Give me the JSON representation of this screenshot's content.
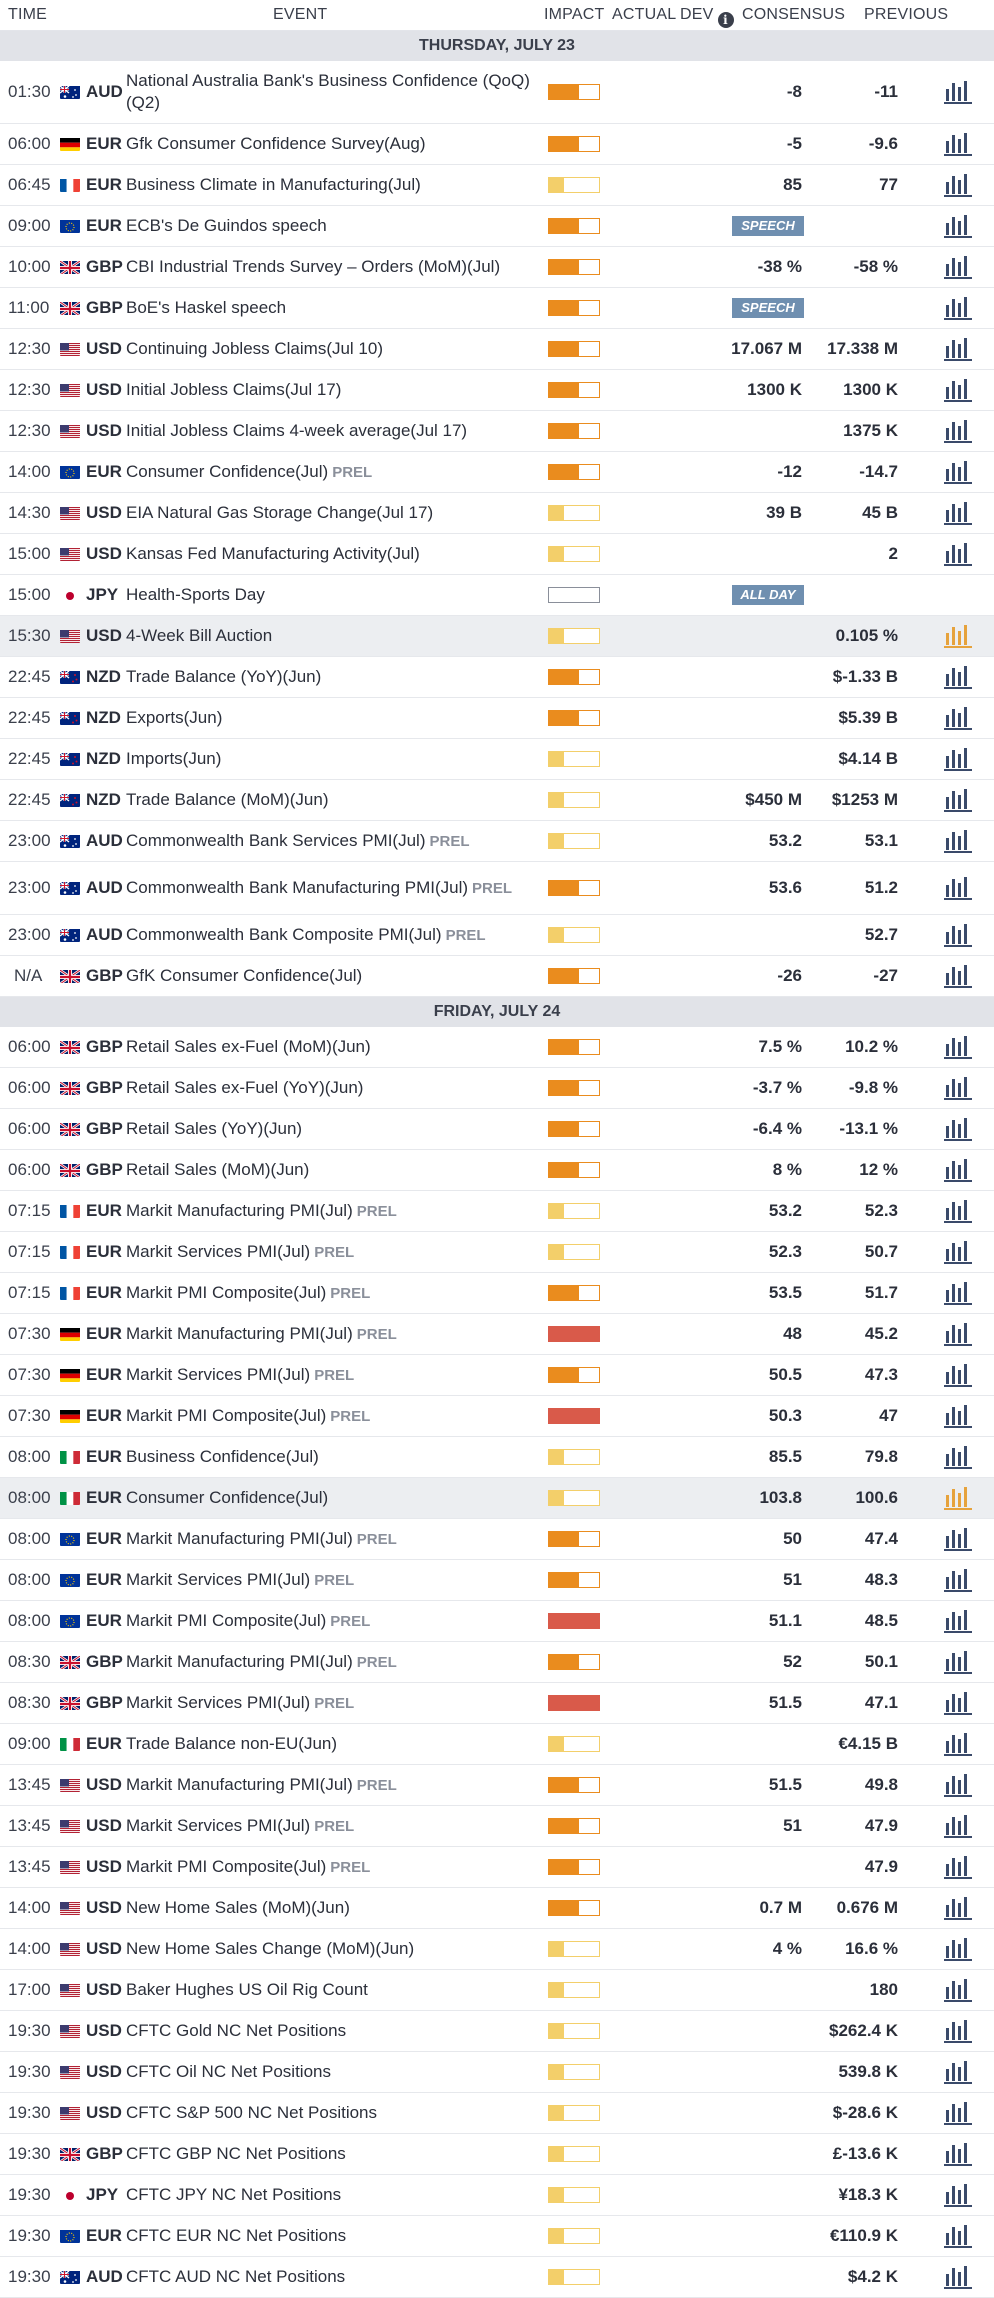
{
  "header": {
    "time": "TIME",
    "event": "EVENT",
    "impact": "IMPACT",
    "actual": "ACTUAL",
    "dev": "DEV",
    "consensus": "CONSENSUS",
    "previous": "PREVIOUS"
  },
  "colors": {
    "impact_high": "#d95a4a",
    "impact_medium": "#ea8c1e",
    "impact_low": "#f3cf6a",
    "chart_icon": "#3a4a6a",
    "chart_icon_active": "#e6a23c",
    "tag_bg": "#6f8fb0"
  },
  "icons": {
    "chart": "bar-chart-icon",
    "info": "info-icon"
  },
  "days": [
    {
      "label": "THURSDAY, JULY 23",
      "rows": [
        {
          "time": "01:30",
          "flag": "AU",
          "cur": "AUD",
          "event": "National Australia Bank's Business Confidence (QoQ)(Q2)",
          "prel": "",
          "impact": 2,
          "consensus": "-8",
          "previous": "-11",
          "tag": "",
          "hl": false,
          "size": "tall"
        },
        {
          "time": "06:00",
          "flag": "DE",
          "cur": "EUR",
          "event": "Gfk Consumer Confidence Survey(Aug)",
          "prel": "",
          "impact": 2,
          "consensus": "-5",
          "previous": "-9.6",
          "tag": "",
          "hl": false
        },
        {
          "time": "06:45",
          "flag": "FR",
          "cur": "EUR",
          "event": "Business Climate in Manufacturing(Jul)",
          "prel": "",
          "impact": 1,
          "consensus": "85",
          "previous": "77",
          "tag": "",
          "hl": false
        },
        {
          "time": "09:00",
          "flag": "EU",
          "cur": "EUR",
          "event": "ECB's De Guindos speech",
          "prel": "",
          "impact": 2,
          "consensus": "",
          "previous": "",
          "tag": "SPEECH",
          "hl": false
        },
        {
          "time": "10:00",
          "flag": "GB",
          "cur": "GBP",
          "event": "CBI Industrial Trends Survey – Orders (MoM)(Jul)",
          "prel": "",
          "impact": 2,
          "consensus": "-38 %",
          "previous": "-58 %",
          "tag": "",
          "hl": false
        },
        {
          "time": "11:00",
          "flag": "GB",
          "cur": "GBP",
          "event": "BoE's Haskel speech",
          "prel": "",
          "impact": 2,
          "consensus": "",
          "previous": "",
          "tag": "SPEECH",
          "hl": false
        },
        {
          "time": "12:30",
          "flag": "US",
          "cur": "USD",
          "event": "Continuing Jobless Claims(Jul 10)",
          "prel": "",
          "impact": 2,
          "consensus": "17.067 M",
          "previous": "17.338 M",
          "tag": "",
          "hl": false
        },
        {
          "time": "12:30",
          "flag": "US",
          "cur": "USD",
          "event": "Initial Jobless Claims(Jul 17)",
          "prel": "",
          "impact": 2,
          "consensus": "1300 K",
          "previous": "1300 K",
          "tag": "",
          "hl": false
        },
        {
          "time": "12:30",
          "flag": "US",
          "cur": "USD",
          "event": "Initial Jobless Claims 4-week average(Jul 17)",
          "prel": "",
          "impact": 2,
          "consensus": "",
          "previous": "1375 K",
          "tag": "",
          "hl": false
        },
        {
          "time": "14:00",
          "flag": "EU",
          "cur": "EUR",
          "event": "Consumer Confidence(Jul)",
          "prel": "PREL",
          "impact": 2,
          "consensus": "-12",
          "previous": "-14.7",
          "tag": "",
          "hl": false
        },
        {
          "time": "14:30",
          "flag": "US",
          "cur": "USD",
          "event": "EIA Natural Gas Storage Change(Jul 17)",
          "prel": "",
          "impact": 1,
          "consensus": "39 B",
          "previous": "45 B",
          "tag": "",
          "hl": false
        },
        {
          "time": "15:00",
          "flag": "US",
          "cur": "USD",
          "event": "Kansas Fed Manufacturing Activity(Jul)",
          "prel": "",
          "impact": 1,
          "consensus": "",
          "previous": "2",
          "tag": "",
          "hl": false
        },
        {
          "time": "15:00",
          "flag": "JP",
          "cur": "JPY",
          "event": "Health-Sports Day",
          "prel": "",
          "impact": 0,
          "consensus": "",
          "previous": "",
          "tag": "ALL DAY",
          "hl": false,
          "nochart": true
        },
        {
          "time": "15:30",
          "flag": "US",
          "cur": "USD",
          "event": "4-Week Bill Auction",
          "prel": "",
          "impact": 1,
          "consensus": "",
          "previous": "0.105 %",
          "tag": "",
          "hl": true
        },
        {
          "time": "22:45",
          "flag": "NZ",
          "cur": "NZD",
          "event": "Trade Balance (YoY)(Jun)",
          "prel": "",
          "impact": 2,
          "consensus": "",
          "previous": "$-1.33 B",
          "tag": "",
          "hl": false
        },
        {
          "time": "22:45",
          "flag": "NZ",
          "cur": "NZD",
          "event": "Exports(Jun)",
          "prel": "",
          "impact": 2,
          "consensus": "",
          "previous": "$5.39 B",
          "tag": "",
          "hl": false
        },
        {
          "time": "22:45",
          "flag": "NZ",
          "cur": "NZD",
          "event": "Imports(Jun)",
          "prel": "",
          "impact": 1,
          "consensus": "",
          "previous": "$4.14 B",
          "tag": "",
          "hl": false
        },
        {
          "time": "22:45",
          "flag": "NZ",
          "cur": "NZD",
          "event": "Trade Balance (MoM)(Jun)",
          "prel": "",
          "impact": 1,
          "consensus": "$450 M",
          "previous": "$1253 M",
          "tag": "",
          "hl": false
        },
        {
          "time": "23:00",
          "flag": "AU",
          "cur": "AUD",
          "event": "Commonwealth Bank Services PMI(Jul)",
          "prel": "PREL",
          "impact": 1,
          "consensus": "53.2",
          "previous": "53.1",
          "tag": "",
          "hl": false
        },
        {
          "time": "23:00",
          "flag": "AU",
          "cur": "AUD",
          "event": "Commonwealth Bank Manufacturing PMI(Jul)",
          "prel": "PREL",
          "impact": 2,
          "consensus": "53.6",
          "previous": "51.2",
          "tag": "",
          "hl": false,
          "size": "mid"
        },
        {
          "time": "23:00",
          "flag": "AU",
          "cur": "AUD",
          "event": "Commonwealth Bank Composite PMI(Jul)",
          "prel": "PREL",
          "impact": 1,
          "consensus": "",
          "previous": "52.7",
          "tag": "",
          "hl": false
        },
        {
          "time": "N/A",
          "flag": "GB",
          "cur": "GBP",
          "event": "GfK Consumer Confidence(Jul)",
          "prel": "",
          "impact": 2,
          "consensus": "-26",
          "previous": "-27",
          "tag": "",
          "hl": false
        }
      ]
    },
    {
      "label": "FRIDAY, JULY 24",
      "rows": [
        {
          "time": "06:00",
          "flag": "GB",
          "cur": "GBP",
          "event": "Retail Sales ex-Fuel (MoM)(Jun)",
          "prel": "",
          "impact": 2,
          "consensus": "7.5 %",
          "previous": "10.2 %",
          "tag": "",
          "hl": false
        },
        {
          "time": "06:00",
          "flag": "GB",
          "cur": "GBP",
          "event": "Retail Sales ex-Fuel (YoY)(Jun)",
          "prel": "",
          "impact": 2,
          "consensus": "-3.7 %",
          "previous": "-9.8 %",
          "tag": "",
          "hl": false
        },
        {
          "time": "06:00",
          "flag": "GB",
          "cur": "GBP",
          "event": "Retail Sales (YoY)(Jun)",
          "prel": "",
          "impact": 2,
          "consensus": "-6.4 %",
          "previous": "-13.1 %",
          "tag": "",
          "hl": false
        },
        {
          "time": "06:00",
          "flag": "GB",
          "cur": "GBP",
          "event": "Retail Sales (MoM)(Jun)",
          "prel": "",
          "impact": 2,
          "consensus": "8 %",
          "previous": "12 %",
          "tag": "",
          "hl": false
        },
        {
          "time": "07:15",
          "flag": "FR",
          "cur": "EUR",
          "event": "Markit Manufacturing PMI(Jul)",
          "prel": "PREL",
          "impact": 1,
          "consensus": "53.2",
          "previous": "52.3",
          "tag": "",
          "hl": false
        },
        {
          "time": "07:15",
          "flag": "FR",
          "cur": "EUR",
          "event": "Markit Services PMI(Jul)",
          "prel": "PREL",
          "impact": 1,
          "consensus": "52.3",
          "previous": "50.7",
          "tag": "",
          "hl": false
        },
        {
          "time": "07:15",
          "flag": "FR",
          "cur": "EUR",
          "event": "Markit PMI Composite(Jul)",
          "prel": "PREL",
          "impact": 2,
          "consensus": "53.5",
          "previous": "51.7",
          "tag": "",
          "hl": false
        },
        {
          "time": "07:30",
          "flag": "DE",
          "cur": "EUR",
          "event": "Markit Manufacturing PMI(Jul)",
          "prel": "PREL",
          "impact": 3,
          "consensus": "48",
          "previous": "45.2",
          "tag": "",
          "hl": false
        },
        {
          "time": "07:30",
          "flag": "DE",
          "cur": "EUR",
          "event": "Markit Services PMI(Jul)",
          "prel": "PREL",
          "impact": 2,
          "consensus": "50.5",
          "previous": "47.3",
          "tag": "",
          "hl": false
        },
        {
          "time": "07:30",
          "flag": "DE",
          "cur": "EUR",
          "event": "Markit PMI Composite(Jul)",
          "prel": "PREL",
          "impact": 3,
          "consensus": "50.3",
          "previous": "47",
          "tag": "",
          "hl": false
        },
        {
          "time": "08:00",
          "flag": "IT",
          "cur": "EUR",
          "event": "Business Confidence(Jul)",
          "prel": "",
          "impact": 1,
          "consensus": "85.5",
          "previous": "79.8",
          "tag": "",
          "hl": false
        },
        {
          "time": "08:00",
          "flag": "IT",
          "cur": "EUR",
          "event": "Consumer Confidence(Jul)",
          "prel": "",
          "impact": 1,
          "consensus": "103.8",
          "previous": "100.6",
          "tag": "",
          "hl": true
        },
        {
          "time": "08:00",
          "flag": "EU",
          "cur": "EUR",
          "event": "Markit Manufacturing PMI(Jul)",
          "prel": "PREL",
          "impact": 2,
          "consensus": "50",
          "previous": "47.4",
          "tag": "",
          "hl": false
        },
        {
          "time": "08:00",
          "flag": "EU",
          "cur": "EUR",
          "event": "Markit Services PMI(Jul)",
          "prel": "PREL",
          "impact": 2,
          "consensus": "51",
          "previous": "48.3",
          "tag": "",
          "hl": false
        },
        {
          "time": "08:00",
          "flag": "EU",
          "cur": "EUR",
          "event": "Markit PMI Composite(Jul)",
          "prel": "PREL",
          "impact": 3,
          "consensus": "51.1",
          "previous": "48.5",
          "tag": "",
          "hl": false
        },
        {
          "time": "08:30",
          "flag": "GB",
          "cur": "GBP",
          "event": "Markit Manufacturing PMI(Jul)",
          "prel": "PREL",
          "impact": 2,
          "consensus": "52",
          "previous": "50.1",
          "tag": "",
          "hl": false
        },
        {
          "time": "08:30",
          "flag": "GB",
          "cur": "GBP",
          "event": "Markit Services PMI(Jul)",
          "prel": "PREL",
          "impact": 3,
          "consensus": "51.5",
          "previous": "47.1",
          "tag": "",
          "hl": false
        },
        {
          "time": "09:00",
          "flag": "IT",
          "cur": "EUR",
          "event": "Trade Balance non-EU(Jun)",
          "prel": "",
          "impact": 1,
          "consensus": "",
          "previous": "€4.15 B",
          "tag": "",
          "hl": false
        },
        {
          "time": "13:45",
          "flag": "US",
          "cur": "USD",
          "event": "Markit Manufacturing PMI(Jul)",
          "prel": "PREL",
          "impact": 2,
          "consensus": "51.5",
          "previous": "49.8",
          "tag": "",
          "hl": false
        },
        {
          "time": "13:45",
          "flag": "US",
          "cur": "USD",
          "event": "Markit Services PMI(Jul)",
          "prel": "PREL",
          "impact": 2,
          "consensus": "51",
          "previous": "47.9",
          "tag": "",
          "hl": false
        },
        {
          "time": "13:45",
          "flag": "US",
          "cur": "USD",
          "event": "Markit PMI Composite(Jul)",
          "prel": "PREL",
          "impact": 2,
          "consensus": "",
          "previous": "47.9",
          "tag": "",
          "hl": false
        },
        {
          "time": "14:00",
          "flag": "US",
          "cur": "USD",
          "event": "New Home Sales (MoM)(Jun)",
          "prel": "",
          "impact": 2,
          "consensus": "0.7 M",
          "previous": "0.676 M",
          "tag": "",
          "hl": false
        },
        {
          "time": "14:00",
          "flag": "US",
          "cur": "USD",
          "event": "New Home Sales Change (MoM)(Jun)",
          "prel": "",
          "impact": 1,
          "consensus": "4 %",
          "previous": "16.6 %",
          "tag": "",
          "hl": false
        },
        {
          "time": "17:00",
          "flag": "US",
          "cur": "USD",
          "event": "Baker Hughes US Oil Rig Count",
          "prel": "",
          "impact": 1,
          "consensus": "",
          "previous": "180",
          "tag": "",
          "hl": false
        },
        {
          "time": "19:30",
          "flag": "US",
          "cur": "USD",
          "event": "CFTC Gold NC Net Positions",
          "prel": "",
          "impact": 1,
          "consensus": "",
          "previous": "$262.4 K",
          "tag": "",
          "hl": false
        },
        {
          "time": "19:30",
          "flag": "US",
          "cur": "USD",
          "event": "CFTC Oil NC Net Positions",
          "prel": "",
          "impact": 1,
          "consensus": "",
          "previous": "539.8 K",
          "tag": "",
          "hl": false
        },
        {
          "time": "19:30",
          "flag": "US",
          "cur": "USD",
          "event": "CFTC S&P 500 NC Net Positions",
          "prel": "",
          "impact": 1,
          "consensus": "",
          "previous": "$-28.6 K",
          "tag": "",
          "hl": false
        },
        {
          "time": "19:30",
          "flag": "GB",
          "cur": "GBP",
          "event": "CFTC GBP NC Net Positions",
          "prel": "",
          "impact": 1,
          "consensus": "",
          "previous": "£-13.6 K",
          "tag": "",
          "hl": false
        },
        {
          "time": "19:30",
          "flag": "JP",
          "cur": "JPY",
          "event": "CFTC JPY NC Net Positions",
          "prel": "",
          "impact": 1,
          "consensus": "",
          "previous": "¥18.3 K",
          "tag": "",
          "hl": false
        },
        {
          "time": "19:30",
          "flag": "EU",
          "cur": "EUR",
          "event": "CFTC EUR NC Net Positions",
          "prel": "",
          "impact": 1,
          "consensus": "",
          "previous": "€110.9 K",
          "tag": "",
          "hl": false
        },
        {
          "time": "19:30",
          "flag": "AU",
          "cur": "AUD",
          "event": "CFTC AUD NC Net Positions",
          "prel": "",
          "impact": 1,
          "consensus": "",
          "previous": "$4.2 K",
          "tag": "",
          "hl": false
        }
      ]
    }
  ]
}
